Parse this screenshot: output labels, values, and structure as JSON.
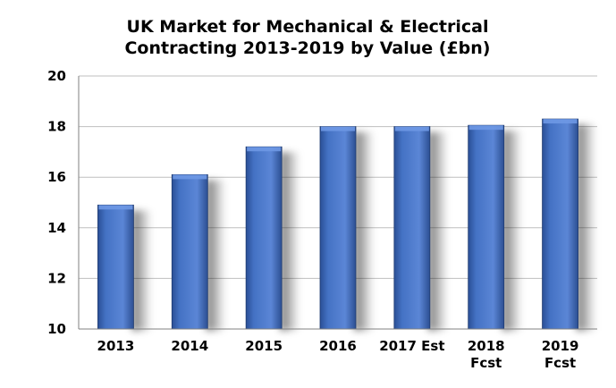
{
  "chart_data": {
    "type": "bar",
    "title_lines": [
      "UK Market for Mechanical & Electrical",
      "Contracting 2013-2019 by Value (£bn)"
    ],
    "categories": [
      [
        "2013"
      ],
      [
        "2014"
      ],
      [
        "2015"
      ],
      [
        "2016"
      ],
      [
        "2017 Est"
      ],
      [
        "2018",
        "Fcst"
      ],
      [
        "2019",
        "Fcst"
      ]
    ],
    "values": [
      14.9,
      16.1,
      17.2,
      18.0,
      18.0,
      18.05,
      18.3
    ],
    "ylim": [
      10,
      20
    ],
    "yticks": [
      "10",
      "12",
      "14",
      "16",
      "18",
      "20"
    ],
    "grid": true,
    "colors": {
      "bar": "#4472c4",
      "bar_dark": "#24457f",
      "grid": "#bfbfbf",
      "axis": "#808080"
    }
  }
}
